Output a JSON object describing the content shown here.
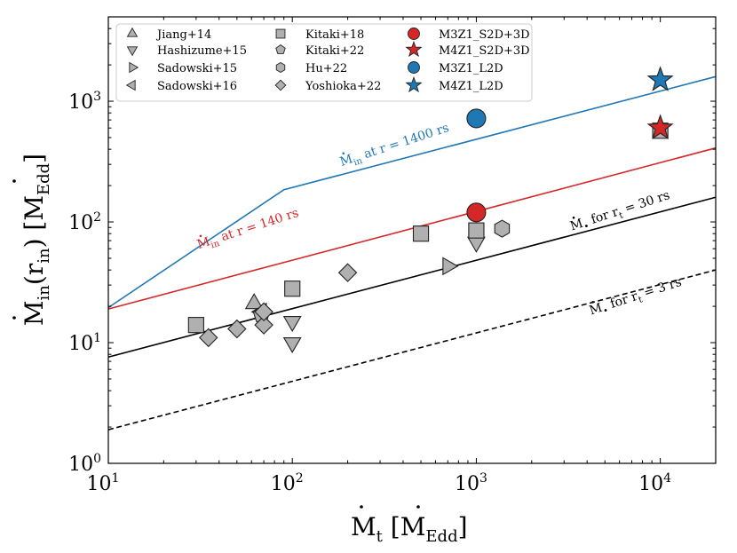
{
  "chart_data": {
    "type": "scatter",
    "scale": "log-log",
    "title": "",
    "xlabel": "Ṁt [ṀEdd]",
    "ylabel": "Ṁin(rin) [ṀEdd]",
    "xlim": [
      10,
      20000
    ],
    "ylim": [
      1,
      5000
    ],
    "x_ticks": [
      {
        "value": 10,
        "base": "10",
        "exp": "1"
      },
      {
        "value": 100,
        "base": "10",
        "exp": "2"
      },
      {
        "value": 1000,
        "base": "10",
        "exp": "3"
      },
      {
        "value": 10000,
        "base": "10",
        "exp": "4"
      }
    ],
    "y_ticks": [
      {
        "value": 1,
        "base": "10",
        "exp": "0"
      },
      {
        "value": 10,
        "base": "10",
        "exp": "1"
      },
      {
        "value": 100,
        "base": "10",
        "exp": "2"
      },
      {
        "value": 1000,
        "base": "10",
        "exp": "3"
      }
    ],
    "xlabel_parts": {
      "dot_symbol": "M",
      "sub": "t",
      "bracket_open": "[",
      "unit_symbol": "M",
      "unit_sub": "Edd",
      "bracket_close": "]"
    },
    "ylabel_parts": {
      "dot_symbol": "M",
      "sub": "in",
      "arg": "(r",
      "arg_sub": "in",
      "arg_close": ")",
      "bracket_open": "[",
      "unit_symbol": "M",
      "unit_sub": "Edd",
      "bracket_close": "]"
    },
    "lines": [
      {
        "name": "blue-1400rs",
        "color": "#1f77b4",
        "style": "solid",
        "x": [
          10,
          90,
          20000
        ],
        "y": [
          19.5,
          185,
          1600
        ]
      },
      {
        "name": "red-140rs",
        "color": "#d62728",
        "style": "solid",
        "x": [
          10,
          20000
        ],
        "y": [
          19,
          410
        ]
      },
      {
        "name": "black-30rs",
        "color": "#000000",
        "style": "solid",
        "x": [
          10,
          20000
        ],
        "y": [
          7.6,
          160
        ]
      },
      {
        "name": "black-3rs",
        "color": "#000000",
        "style": "dashed",
        "x": [
          10,
          20000
        ],
        "y": [
          1.9,
          40
        ]
      }
    ],
    "line_annotations": [
      {
        "sym": "M",
        "sub": "in",
        "text": " at r = 1400 rs",
        "color": "#1f77b4",
        "x": 185,
        "y": 290,
        "angle": 18
      },
      {
        "sym": "M",
        "sub": "in",
        "text": " at r = 140 rs",
        "color": "#d62728",
        "x": 31,
        "y": 60,
        "angle": 18
      },
      {
        "sym": "M",
        "sub": "•",
        "text": " for r",
        "sub2": "t",
        "text2": " = 30 rs",
        "color": "#000000",
        "x": 3300,
        "y": 85,
        "angle": 18
      },
      {
        "sym": "M",
        "sub": "•",
        "text": " for r",
        "sub2": "t",
        "text2": " = 3 rs",
        "color": "#000000",
        "x": 4200,
        "y": 17,
        "angle": 18
      }
    ],
    "series": [
      {
        "name": "Jiang+14",
        "marker": "triangle-up",
        "color": "#b0b0b0",
        "points": [
          {
            "x": 62,
            "y": 21
          }
        ]
      },
      {
        "name": "Hashizume+15",
        "marker": "triangle-down",
        "color": "#b0b0b0",
        "points": [
          {
            "x": 100,
            "y": 15
          },
          {
            "x": 100,
            "y": 10
          },
          {
            "x": 1000,
            "y": 68
          }
        ]
      },
      {
        "name": "Sadowski+15",
        "marker": "triangle-right",
        "color": "#b0b0b0",
        "points": [
          {
            "x": 700,
            "y": 43
          }
        ]
      },
      {
        "name": "Sadowski+16",
        "marker": "triangle-left",
        "color": "#b0b0b0",
        "points": [
          {
            "x": 68,
            "y": 18
          }
        ]
      },
      {
        "name": "Kitaki+18",
        "marker": "square",
        "color": "#b0b0b0",
        "points": [
          {
            "x": 30,
            "y": 14
          },
          {
            "x": 100,
            "y": 28
          },
          {
            "x": 500,
            "y": 80
          },
          {
            "x": 1000,
            "y": 85
          },
          {
            "x": 10000,
            "y": 570
          }
        ]
      },
      {
        "name": "Kitaki+22",
        "marker": "pentagon",
        "color": "#b0b0b0",
        "points": [
          {
            "x": 68,
            "y": 17
          }
        ]
      },
      {
        "name": "Hu+22",
        "marker": "hexagon",
        "color": "#b0b0b0",
        "points": [
          {
            "x": 1380,
            "y": 88
          }
        ]
      },
      {
        "name": "Yoshioka+22",
        "marker": "diamond",
        "color": "#b0b0b0",
        "points": [
          {
            "x": 35,
            "y": 11
          },
          {
            "x": 50,
            "y": 13
          },
          {
            "x": 70,
            "y": 14
          },
          {
            "x": 70,
            "y": 18
          },
          {
            "x": 200,
            "y": 38
          }
        ]
      },
      {
        "name": "M3Z1_S2D+3D",
        "marker": "circle",
        "color": "#d62728",
        "points": [
          {
            "x": 1000,
            "y": 120
          }
        ]
      },
      {
        "name": "M4Z1_S2D+3D",
        "marker": "star",
        "color": "#d62728",
        "points": [
          {
            "x": 10000,
            "y": 600
          }
        ]
      },
      {
        "name": "M3Z1_L2D",
        "marker": "circle",
        "color": "#1f77b4",
        "points": [
          {
            "x": 1000,
            "y": 720
          }
        ]
      },
      {
        "name": "M4Z1_L2D",
        "marker": "star",
        "color": "#1f77b4",
        "points": [
          {
            "x": 10000,
            "y": 1500
          }
        ]
      }
    ],
    "legend": {
      "placement": "top-left",
      "columns": [
        [
          "Jiang+14",
          "Hashizume+15",
          "Sadowski+15",
          "Sadowski+16"
        ],
        [
          "Kitaki+18",
          "Kitaki+22",
          "Hu+22",
          "Yoshioka+22"
        ],
        [
          "M3Z1_S2D+3D",
          "M4Z1_S2D+3D",
          "M3Z1_L2D",
          "M4Z1_L2D"
        ]
      ]
    }
  }
}
